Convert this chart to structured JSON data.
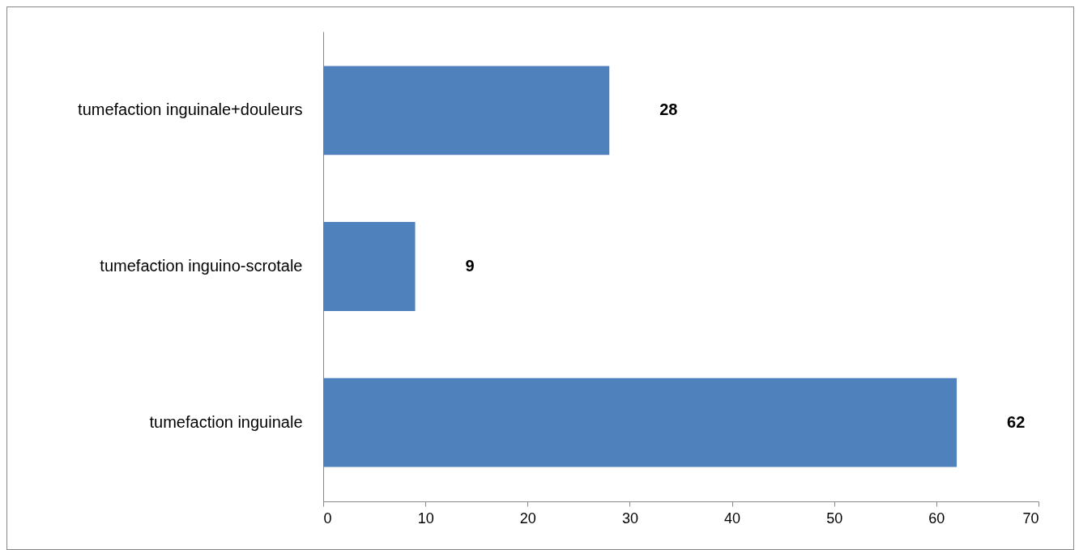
{
  "chart_data": {
    "type": "bar",
    "orientation": "horizontal",
    "categories": [
      "tumefaction inguinale+douleurs",
      "tumefaction inguino-scrotale",
      "tumefaction inguinale"
    ],
    "values": [
      28,
      9,
      62
    ],
    "color": "#4f81bd",
    "xlim": [
      0,
      70
    ],
    "xticks": [
      0,
      10,
      20,
      30,
      40,
      50,
      60,
      70
    ],
    "data_labels": true,
    "grid": false
  }
}
